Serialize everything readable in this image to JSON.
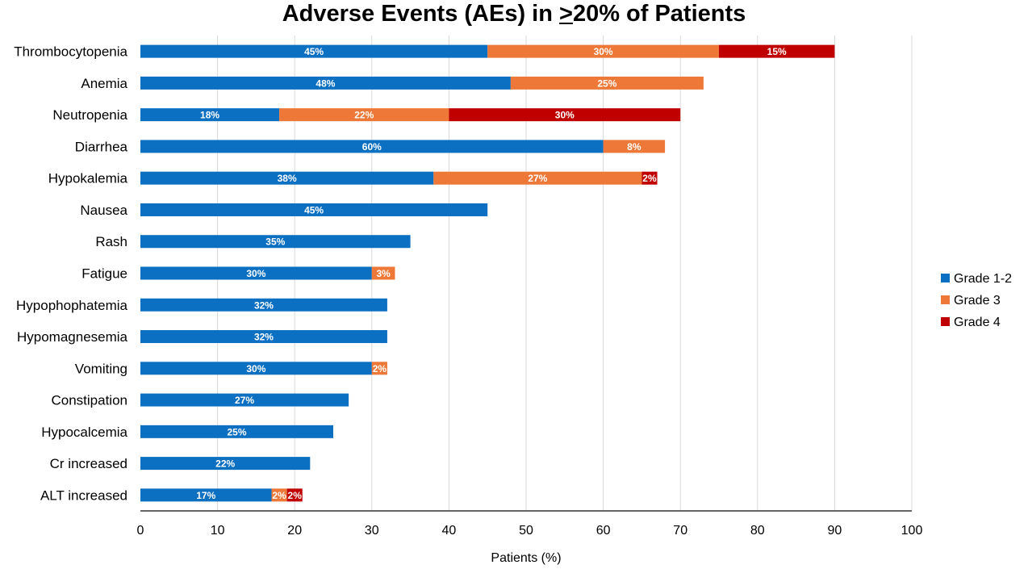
{
  "chart_data": {
    "type": "bar",
    "orientation": "horizontal",
    "stacked": true,
    "title_parts": [
      "Adverse Events (AEs) in ",
      ">",
      "20% of Patients"
    ],
    "xlabel": "Patients (%)",
    "xlim": [
      0,
      100
    ],
    "xticks": [
      0,
      10,
      20,
      30,
      40,
      50,
      60,
      70,
      80,
      90,
      100
    ],
    "grid": true,
    "legend_position": "right",
    "categories": [
      "Thrombocytopenia",
      "Anemia",
      "Neutropenia",
      "Diarrhea",
      "Hypokalemia",
      "Nausea",
      "Rash",
      "Fatigue",
      "Hypophophatemia",
      "Hypomagnesemia",
      "Vomiting",
      "Constipation",
      "Hypocalcemia",
      "Cr increased",
      "ALT increased"
    ],
    "series": [
      {
        "name": "Grade 1-2",
        "color": "#0B6FC2",
        "values": [
          45,
          48,
          18,
          60,
          38,
          45,
          35,
          30,
          32,
          32,
          30,
          27,
          25,
          22,
          17
        ]
      },
      {
        "name": "Grade 3",
        "color": "#ED7837",
        "values": [
          30,
          25,
          22,
          8,
          27,
          0,
          0,
          3,
          0,
          0,
          2,
          0,
          0,
          0,
          2
        ]
      },
      {
        "name": "Grade 4",
        "color": "#C00000",
        "values": [
          15,
          0,
          30,
          0,
          2,
          0,
          0,
          0,
          0,
          0,
          0,
          0,
          0,
          0,
          2
        ]
      }
    ]
  }
}
